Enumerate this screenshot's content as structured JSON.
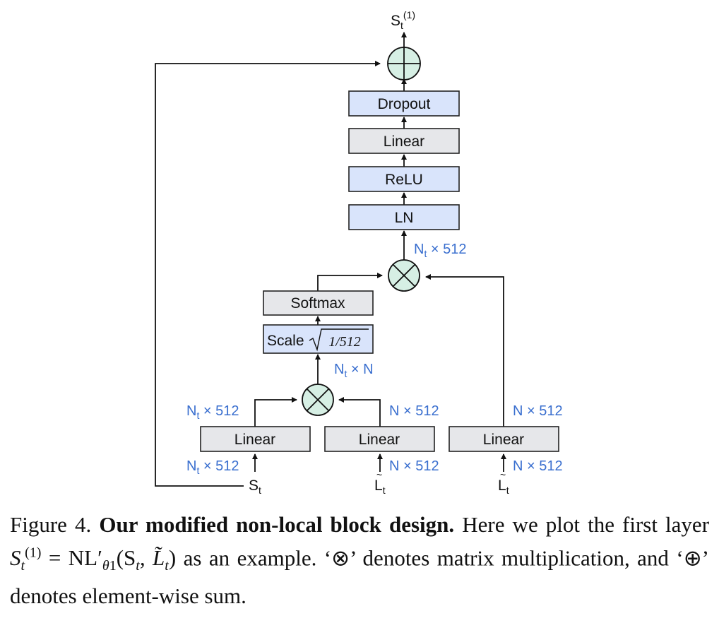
{
  "diagram": {
    "blocks": {
      "dropout": "Dropout",
      "linear_top": "Linear",
      "relu": "ReLU",
      "ln": "LN",
      "softmax": "Softmax",
      "scale_prefix": "Scale",
      "scale_value": "1/512",
      "linear_left": "Linear",
      "linear_mid": "Linear",
      "linear_right": "Linear"
    },
    "output_label": {
      "base": "S",
      "sub": "t",
      "sup": "(1)"
    },
    "input_labels": {
      "s": {
        "base": "S",
        "sub": "t"
      },
      "l_mid": {
        "base": "L",
        "sub": "t",
        "accent": "~"
      },
      "l_right": {
        "base": "L",
        "sub": "t",
        "accent": "~"
      }
    },
    "dims": {
      "after_mult_top": {
        "base": "N",
        "sub": "t",
        "rest": " × 512"
      },
      "after_mult_bottom": {
        "base": "N",
        "sub": "t",
        "rest": " × N"
      },
      "left_linear_out": {
        "base": "N",
        "sub": "t",
        "rest": " × 512"
      },
      "mid_linear_out": {
        "text": "N × 512"
      },
      "right_linear_out": {
        "text": "N × 512"
      },
      "left_linear_in": {
        "base": "N",
        "sub": "t",
        "rest": " × 512"
      },
      "mid_linear_in": {
        "text": "N × 512"
      },
      "right_linear_in": {
        "text": "N × 512"
      }
    },
    "colors": {
      "gray_block": "#e6e7ea",
      "blue_block": "#d9e4fb",
      "op_circle": "#d6efe4",
      "dim_text": "#3a6fcf"
    }
  },
  "caption": {
    "figure": "Figure 4.",
    "title": "Our modified non-local block design.",
    "text_1": "Here we plot the first layer",
    "eq_lhs": "S",
    "eq_lhs_sub": "t",
    "eq_lhs_sup": "(1)",
    "eq_mid": " = NL′",
    "eq_theta": "θ",
    "eq_theta_sub": "1",
    "eq_args": "(S",
    "eq_args_sub": "t",
    "eq_args_2": ", L̃",
    "eq_args_sub2": "t",
    "eq_close": ")",
    "text_2": "as an example. ‘⊗’ denotes matrix multiplication, and ‘⊕’ denotes element-wise sum."
  }
}
